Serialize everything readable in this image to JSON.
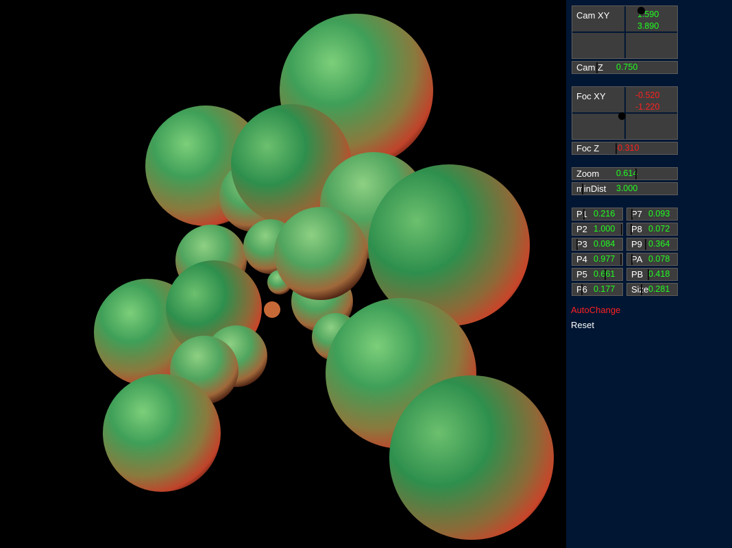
{
  "panel": {
    "cam_xy": {
      "label": "Cam XY",
      "x": "1.590",
      "y": "3.890"
    },
    "cam_z": {
      "label": "Cam Z",
      "value": "0.750",
      "fraction": 0.23
    },
    "foc_xy": {
      "label": "Foc XY",
      "x": "-0.520",
      "y": "-1.220"
    },
    "foc_z": {
      "label": "Foc Z",
      "value": "-0.310",
      "fraction": 0.42
    },
    "zoom": {
      "label": "Zoom",
      "value": "0.614",
      "fraction": 0.61
    },
    "min_dist": {
      "label": "minDist",
      "value": "3.000",
      "fraction": 0.09
    },
    "params_left": [
      {
        "label": "P1",
        "value": "0.216",
        "color": "green",
        "fraction": 0.22
      },
      {
        "label": "P2",
        "value": "1.000",
        "color": "green",
        "fraction": 1.0
      },
      {
        "label": "P3",
        "value": "0.084",
        "color": "green",
        "fraction": 0.08
      },
      {
        "label": "P4",
        "value": "0.977",
        "color": "green",
        "fraction": 0.98
      },
      {
        "label": "P5",
        "value": "0.661",
        "color": "green",
        "fraction": 0.66
      },
      {
        "label": "P6",
        "value": "0.177",
        "color": "green",
        "fraction": 0.18
      }
    ],
    "params_right": [
      {
        "label": "P7",
        "value": "0.093",
        "color": "green",
        "fraction": 0.09
      },
      {
        "label": "P8",
        "value": "0.072",
        "color": "green",
        "fraction": 0.07
      },
      {
        "label": "P9",
        "value": "0.364",
        "color": "green",
        "fraction": 0.36
      },
      {
        "label": "PA",
        "value": "0.078",
        "color": "green",
        "fraction": 0.08
      },
      {
        "label": "PB",
        "value": "0.418",
        "color": "green",
        "fraction": 0.42
      },
      {
        "label": "Size",
        "value": "0.281",
        "color": "green",
        "fraction": 0.28
      }
    ],
    "auto_change": {
      "label": "AutoChange",
      "color": "#ff2020"
    },
    "reset": {
      "label": "Reset",
      "color": "#ffffff"
    }
  },
  "colors": {
    "panel_bg": "#011633",
    "widget_bg": "#3d3d3d",
    "value_green": "#20ff20",
    "value_red": "#ff2020",
    "sphere_green": "#1e9c50",
    "sphere_red": "#d23a1e"
  }
}
